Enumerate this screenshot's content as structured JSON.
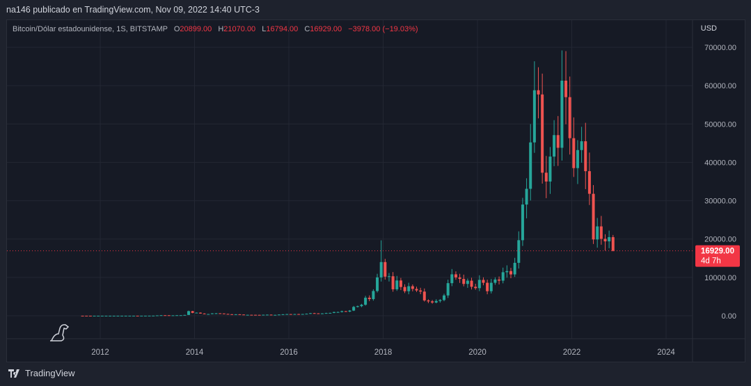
{
  "header": {
    "published": "na146 publicado en TradingView.com, Nov 09, 2022 14:40 UTC-3"
  },
  "legend": {
    "symbol": "Bitcoin/Dólar estadounidense, 1S, BITSTAMP",
    "o_label": "O",
    "o": "20899.00",
    "h_label": "H",
    "h": "21070.00",
    "l_label": "L",
    "l": "16794.00",
    "c_label": "C",
    "c": "16929.00",
    "change": "−3978.00 (−19.03%)"
  },
  "footer": {
    "brand": "TradingView"
  },
  "colors": {
    "up": "#26a69a",
    "down": "#ef5350",
    "last": "#f23645"
  },
  "chart_data": {
    "type": "candlestick",
    "currency": "USD",
    "ylim": [
      0,
      70000
    ],
    "yticks": [
      0,
      10000,
      20000,
      30000,
      40000,
      50000,
      60000,
      70000
    ],
    "ytick_labels": [
      "0.00",
      "10000.00",
      "20000.00",
      "30000.00",
      "40000.00",
      "50000.00",
      "60000.00",
      "70000.00"
    ],
    "xticks": [
      2012,
      2014,
      2016,
      2018,
      2020,
      2022,
      2024
    ],
    "xtick_labels": [
      "2012",
      "2014",
      "2016",
      "2018",
      "2020",
      "2022",
      "2024"
    ],
    "last_price": {
      "value": 16929,
      "label": "16929.00",
      "countdown": "4d 7h"
    },
    "start": [
      2011,
      8
    ],
    "monthly_close": [
      8,
      5,
      3,
      3,
      4,
      5,
      5,
      5,
      5,
      5,
      7,
      9,
      10,
      12,
      11,
      12,
      13,
      20,
      33,
      93,
      139,
      129,
      97,
      106,
      135,
      141,
      211,
      1205,
      757,
      800,
      580,
      450,
      450,
      620,
      640,
      590,
      480,
      390,
      340,
      380,
      320,
      220,
      250,
      245,
      235,
      230,
      265,
      285,
      230,
      236,
      315,
      380,
      430,
      370,
      440,
      415,
      450,
      530,
      670,
      625,
      575,
      610,
      700,
      745,
      965,
      970,
      1190,
      1080,
      1350,
      2300,
      2500,
      2870,
      4700,
      4340,
      6450,
      10000,
      14000,
      10200,
      10300,
      6900,
      9200,
      7500,
      6400,
      7700,
      7000,
      6600,
      6300,
      4000,
      3750,
      3450,
      3850,
      4100,
      5300,
      8500,
      10800,
      10000,
      9600,
      8300,
      9150,
      7550,
      7200,
      9350,
      8600,
      6400,
      8600,
      9450,
      9150,
      11350,
      11650,
      10780,
      13800,
      19700,
      29000,
      33100,
      45200,
      58800,
      57700,
      37300,
      35000,
      41500,
      47100,
      43800,
      61300,
      57000,
      46300,
      38500,
      43200,
      45500,
      37700,
      31800,
      19900,
      23300,
      20050,
      19400,
      20500,
      16929
    ],
    "peaks": [
      {
        "date": "2017-12",
        "high": 19666
      },
      {
        "date": "2021-04",
        "high": 64800
      },
      {
        "date": "2021-11",
        "high": 69000
      }
    ]
  }
}
